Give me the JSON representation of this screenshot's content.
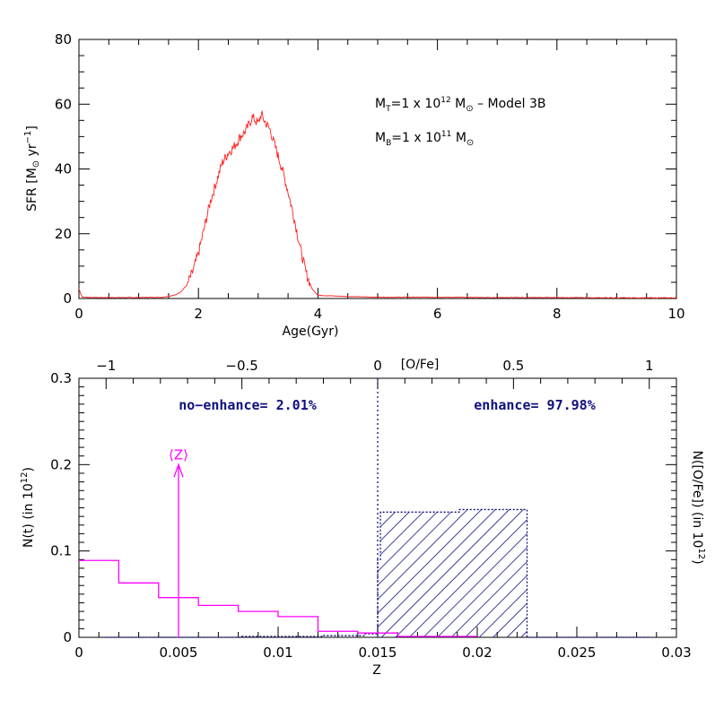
{
  "chart_data": [
    {
      "type": "line",
      "xlabel": "Age(Gyr)",
      "ylabel": "SFR [M⊙ yr⁻¹]",
      "xlim": [
        0,
        10
      ],
      "ylim": [
        0,
        80
      ],
      "xticks": [
        0,
        2,
        4,
        6,
        8,
        10
      ],
      "yticks": [
        0,
        20,
        40,
        60,
        80
      ],
      "xtick_labels": [
        "0",
        "2",
        "4",
        "6",
        "8",
        "10"
      ],
      "ytick_labels": [
        "0",
        "20",
        "40",
        "60",
        "80"
      ],
      "annotations": [
        "M_T=1 x 10^12 M⊙ – Model 3B",
        "M_B=1 x 10^11 M⊙"
      ],
      "annotation_lines": [
        {
          "main1": "M",
          "sub1": "T",
          "mid": "=1 x 10",
          "sup": "12",
          "end": " M",
          "sub2": "⊙",
          "tail": " – Model 3B"
        },
        {
          "main1": "M",
          "sub1": "B",
          "mid": "=1 x 10",
          "sup": "11",
          "end": " M",
          "sub2": "⊙",
          "tail": ""
        }
      ],
      "color": "#ff2020",
      "series": [
        {
          "x": [
            0.0,
            0.05,
            0.1,
            0.3,
            0.6,
            1.0,
            1.4,
            1.6,
            1.7,
            1.8,
            1.9,
            2.0,
            2.1,
            2.2,
            2.3,
            2.4,
            2.5,
            2.6,
            2.7,
            2.8,
            2.9,
            3.0,
            3.05,
            3.1,
            3.2,
            3.3,
            3.4,
            3.5,
            3.6,
            3.7,
            3.8,
            3.9,
            4.0,
            4.5,
            5.0,
            6.0,
            7.0,
            8.0,
            9.0,
            10.0
          ],
          "y": [
            3,
            0.5,
            0.4,
            0.3,
            0.3,
            0.3,
            0.4,
            1,
            2,
            4,
            8,
            14,
            22,
            30,
            36,
            42,
            45,
            47,
            50,
            52,
            56,
            54,
            57,
            55,
            52,
            46,
            40,
            33,
            25,
            16,
            8,
            3,
            1,
            0.6,
            0.4,
            0.4,
            0.3,
            0.3,
            0.2,
            0.2
          ]
        }
      ]
    },
    {
      "type": "bar",
      "xlabel": "Z",
      "ylabel": "N(t) (in 10^12)",
      "ylabel_right": "N([O/Fe]) (in 10^12)",
      "top_xlabel": "[O/Fe]",
      "xlim": [
        0,
        0.03
      ],
      "ylim": [
        0,
        0.3
      ],
      "xticks": [
        0,
        0.005,
        0.01,
        0.015,
        0.02,
        0.025,
        0.03
      ],
      "xtick_labels": [
        "0",
        "0.005",
        "0.01",
        "0.015",
        "0.02",
        "0.025",
        "0.03"
      ],
      "yticks": [
        0,
        0.1,
        0.2,
        0.3
      ],
      "ytick_labels": [
        "0",
        "0.1",
        "0.2",
        "0.3"
      ],
      "top_xlim": [
        -1.1,
        1.1
      ],
      "top_xticks": [
        -1,
        -0.5,
        0,
        0.5,
        1
      ],
      "top_xtick_labels": [
        "−1",
        "−0.5",
        "0",
        "0.5",
        "1"
      ],
      "ylabel_parts": {
        "pre": "N(t) (in 10",
        "sup": "12",
        "post": ")"
      },
      "ylabel_right_parts": {
        "pre": "N([O/Fe]) (in 10",
        "sup": "12",
        "post": ")"
      },
      "labels": {
        "no_enhance": "no−enhance= 2.01%",
        "enhance": "enhance= 97.98%",
        "mean_z": "⟨Z⟩"
      },
      "mean_z": 0.005,
      "mean_z_arrow_top": 0.2,
      "colors": {
        "metallicity": "#ff00ff",
        "ofe": "#101080"
      },
      "series": [
        {
          "name": "N(t) vs Z",
          "type": "step",
          "edges": [
            0,
            0.002,
            0.004,
            0.006,
            0.008,
            0.01,
            0.012,
            0.014,
            0.016,
            0.018,
            0.02
          ],
          "values": [
            0.089,
            0.063,
            0.046,
            0.037,
            0.03,
            0.024,
            0.007,
            0.005,
            0.001,
            0.001
          ]
        },
        {
          "name": "N([O/Fe])",
          "type": "step",
          "edges": [
            -1.0,
            -0.5,
            -0.2,
            -0.05,
            0.0,
            0.01,
            0.25,
            0.3,
            0.55,
            1.0
          ],
          "values": [
            0.0,
            0.001,
            0.002,
            0.004,
            0.09,
            0.145,
            0.145,
            0.148,
            0.0
          ]
        }
      ]
    }
  ]
}
